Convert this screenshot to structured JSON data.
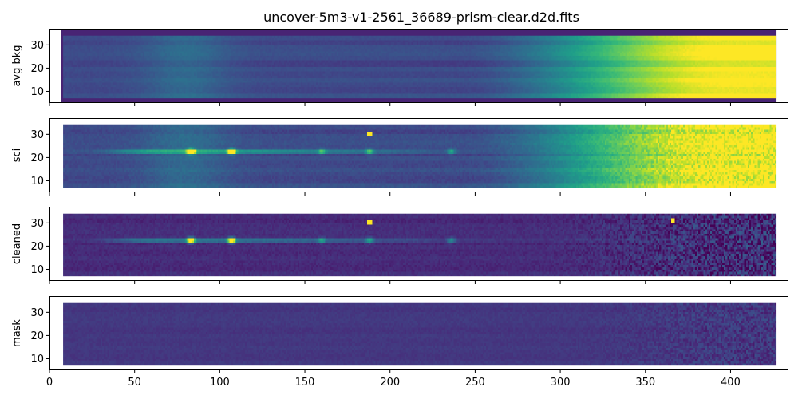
{
  "chart_data": {
    "type": "heatmap",
    "title": "uncover-5m3-v1-2561_36689-prism-clear.d2d.fits",
    "colormap": "viridis",
    "shared_x": true,
    "xlim": [
      0,
      434
    ],
    "x_ticks": [
      0,
      50,
      100,
      150,
      200,
      250,
      300,
      350,
      400
    ],
    "ylim": [
      5,
      37
    ],
    "y_ticks": [
      10,
      20,
      30
    ],
    "data_extent": {
      "x": [
        8,
        427
      ],
      "y": [
        7,
        34
      ]
    },
    "trace_row": 22.5,
    "emission_features": [
      {
        "x": 83,
        "y": 22.5,
        "strength": 1.0
      },
      {
        "x": 107,
        "y": 22.5,
        "strength": 0.9
      },
      {
        "x": 160,
        "y": 22.5,
        "strength": 0.3
      },
      {
        "x": 188,
        "y": 22.5,
        "strength": 0.35
      },
      {
        "x": 236,
        "y": 22.5,
        "strength": 0.3
      }
    ],
    "hot_pixels": [
      {
        "x": 188,
        "y": 30
      },
      {
        "x": 366,
        "y": 31
      }
    ],
    "panels": [
      {
        "ylabel": "avg bkg",
        "kind": "background"
      },
      {
        "ylabel": "sci",
        "kind": "science"
      },
      {
        "ylabel": "cleaned",
        "kind": "cleaned"
      },
      {
        "ylabel": "mask",
        "kind": "mask"
      }
    ]
  }
}
